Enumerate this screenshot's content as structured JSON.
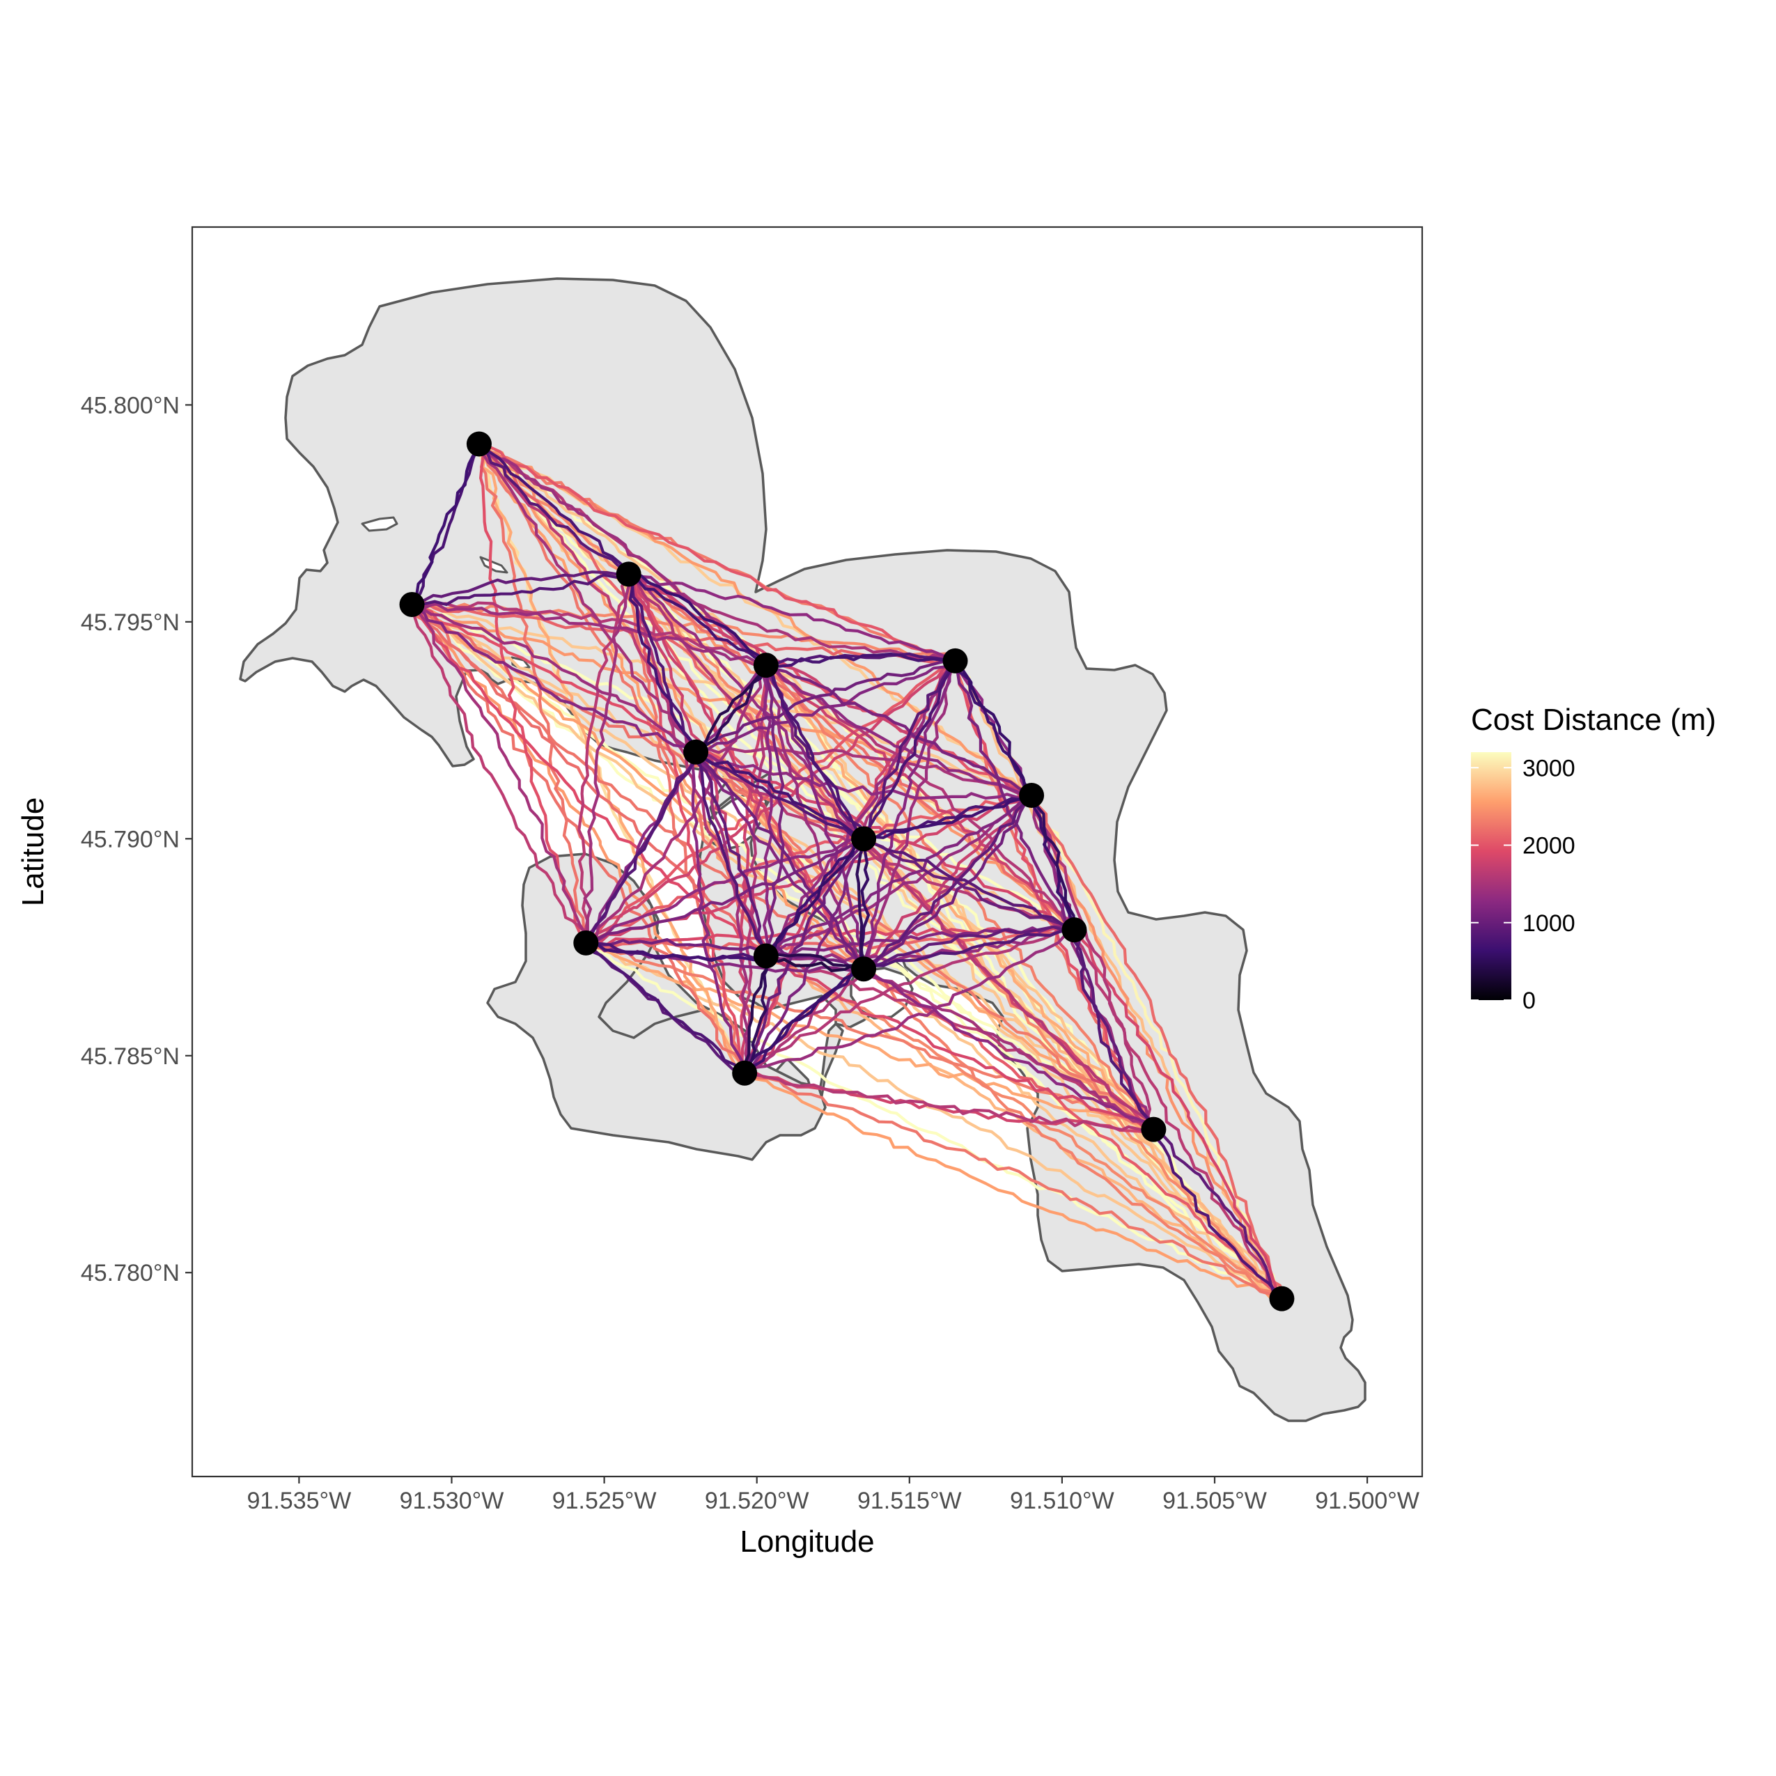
{
  "chart_data": {
    "type": "map",
    "xlabel": "Longitude",
    "ylabel": "Latitude",
    "xlim": [
      -91.5385,
      -91.4982
    ],
    "ylim": [
      45.7753,
      45.8041
    ],
    "x_ticks": [
      {
        "value": -91.535,
        "label": "91.535°W"
      },
      {
        "value": -91.53,
        "label": "91.530°W"
      },
      {
        "value": -91.525,
        "label": "91.525°W"
      },
      {
        "value": -91.52,
        "label": "91.520°W"
      },
      {
        "value": -91.515,
        "label": "91.515°W"
      },
      {
        "value": -91.51,
        "label": "91.510°W"
      },
      {
        "value": -91.505,
        "label": "91.505°W"
      },
      {
        "value": -91.5,
        "label": "91.500°W"
      }
    ],
    "y_ticks": [
      {
        "value": 45.78,
        "label": "45.780°N"
      },
      {
        "value": 45.785,
        "label": "45.785°N"
      },
      {
        "value": 45.79,
        "label": "45.790°N"
      },
      {
        "value": 45.795,
        "label": "45.795°N"
      },
      {
        "value": 45.8,
        "label": "45.800°N"
      }
    ],
    "grid": false,
    "legend": {
      "title": "Cost Distance (m)",
      "position": "right",
      "range": [
        0,
        3200
      ],
      "breaks": [
        {
          "value": 0,
          "label": "0"
        },
        {
          "value": 1000,
          "label": "1000"
        },
        {
          "value": 2000,
          "label": "2000"
        },
        {
          "value": 3000,
          "label": "3000"
        }
      ],
      "palette": [
        "#000004",
        "#3b0f70",
        "#8c2981",
        "#de4968",
        "#fe9f6d",
        "#fcfdbf"
      ]
    },
    "colors": {
      "land_fill": "#e5e5e5",
      "land_outline": "#595959",
      "site_point": "#000000",
      "panel_border": "#333333"
    },
    "sites": [
      {
        "lon": -91.5291,
        "lat": 45.7991
      },
      {
        "lon": -91.5313,
        "lat": 45.7954
      },
      {
        "lon": -91.5242,
        "lat": 45.7961
      },
      {
        "lon": -91.522,
        "lat": 45.792
      },
      {
        "lon": -91.5197,
        "lat": 45.794
      },
      {
        "lon": -91.5135,
        "lat": 45.7941
      },
      {
        "lon": -91.511,
        "lat": 45.791
      },
      {
        "lon": -91.5165,
        "lat": 45.79
      },
      {
        "lon": -91.5096,
        "lat": 45.7879
      },
      {
        "lon": -91.5256,
        "lat": 45.7876
      },
      {
        "lon": -91.5197,
        "lat": 45.7873
      },
      {
        "lon": -91.5165,
        "lat": 45.787
      },
      {
        "lon": -91.5204,
        "lat": 45.7846
      },
      {
        "lon": -91.507,
        "lat": 45.7833
      },
      {
        "lon": -91.5028,
        "lat": 45.7794
      }
    ]
  }
}
